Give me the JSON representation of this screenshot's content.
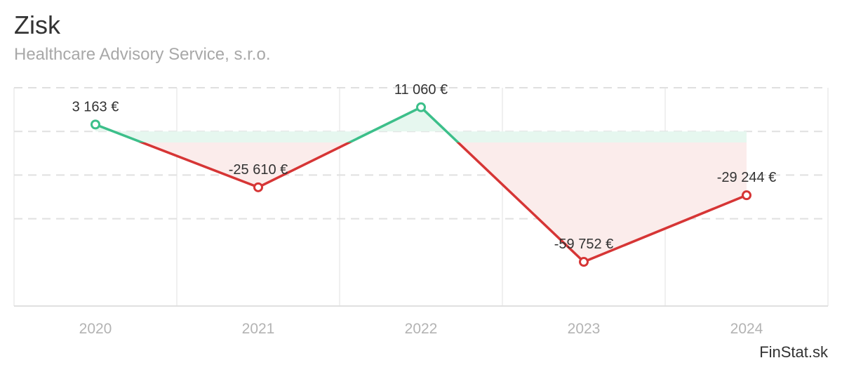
{
  "header": {
    "title": "Zisk",
    "subtitle": "Healthcare Advisory Service, s.r.o."
  },
  "credit": "FinStat.sk",
  "colors": {
    "positive_line": "#3cbf8a",
    "negative_line": "#d63535",
    "positive_fill": "#e6f7ef",
    "negative_fill": "#fbeceb",
    "grid": "#e0e0e0",
    "axis_text": "#b3b3b3",
    "label_text": "#333333"
  },
  "chart_data": {
    "type": "line",
    "title": "Zisk",
    "subtitle": "Healthcare Advisory Service, s.r.o.",
    "categories": [
      "2020",
      "2021",
      "2022",
      "2023",
      "2024"
    ],
    "series": [
      {
        "values": [
          3163,
          -25610,
          11060,
          -59752,
          -29244
        ],
        "labels": [
          "3 163 €",
          "-25 610 €",
          "11 060 €",
          "-59 752 €",
          "-29 244 €"
        ]
      }
    ],
    "ylim": [
      -80000,
      20000
    ],
    "y_gridlines": [
      20000,
      0,
      -20000,
      -40000
    ],
    "area_baseline": 0,
    "grid": true,
    "legend": "none",
    "y_tick_labels_shown": false
  }
}
